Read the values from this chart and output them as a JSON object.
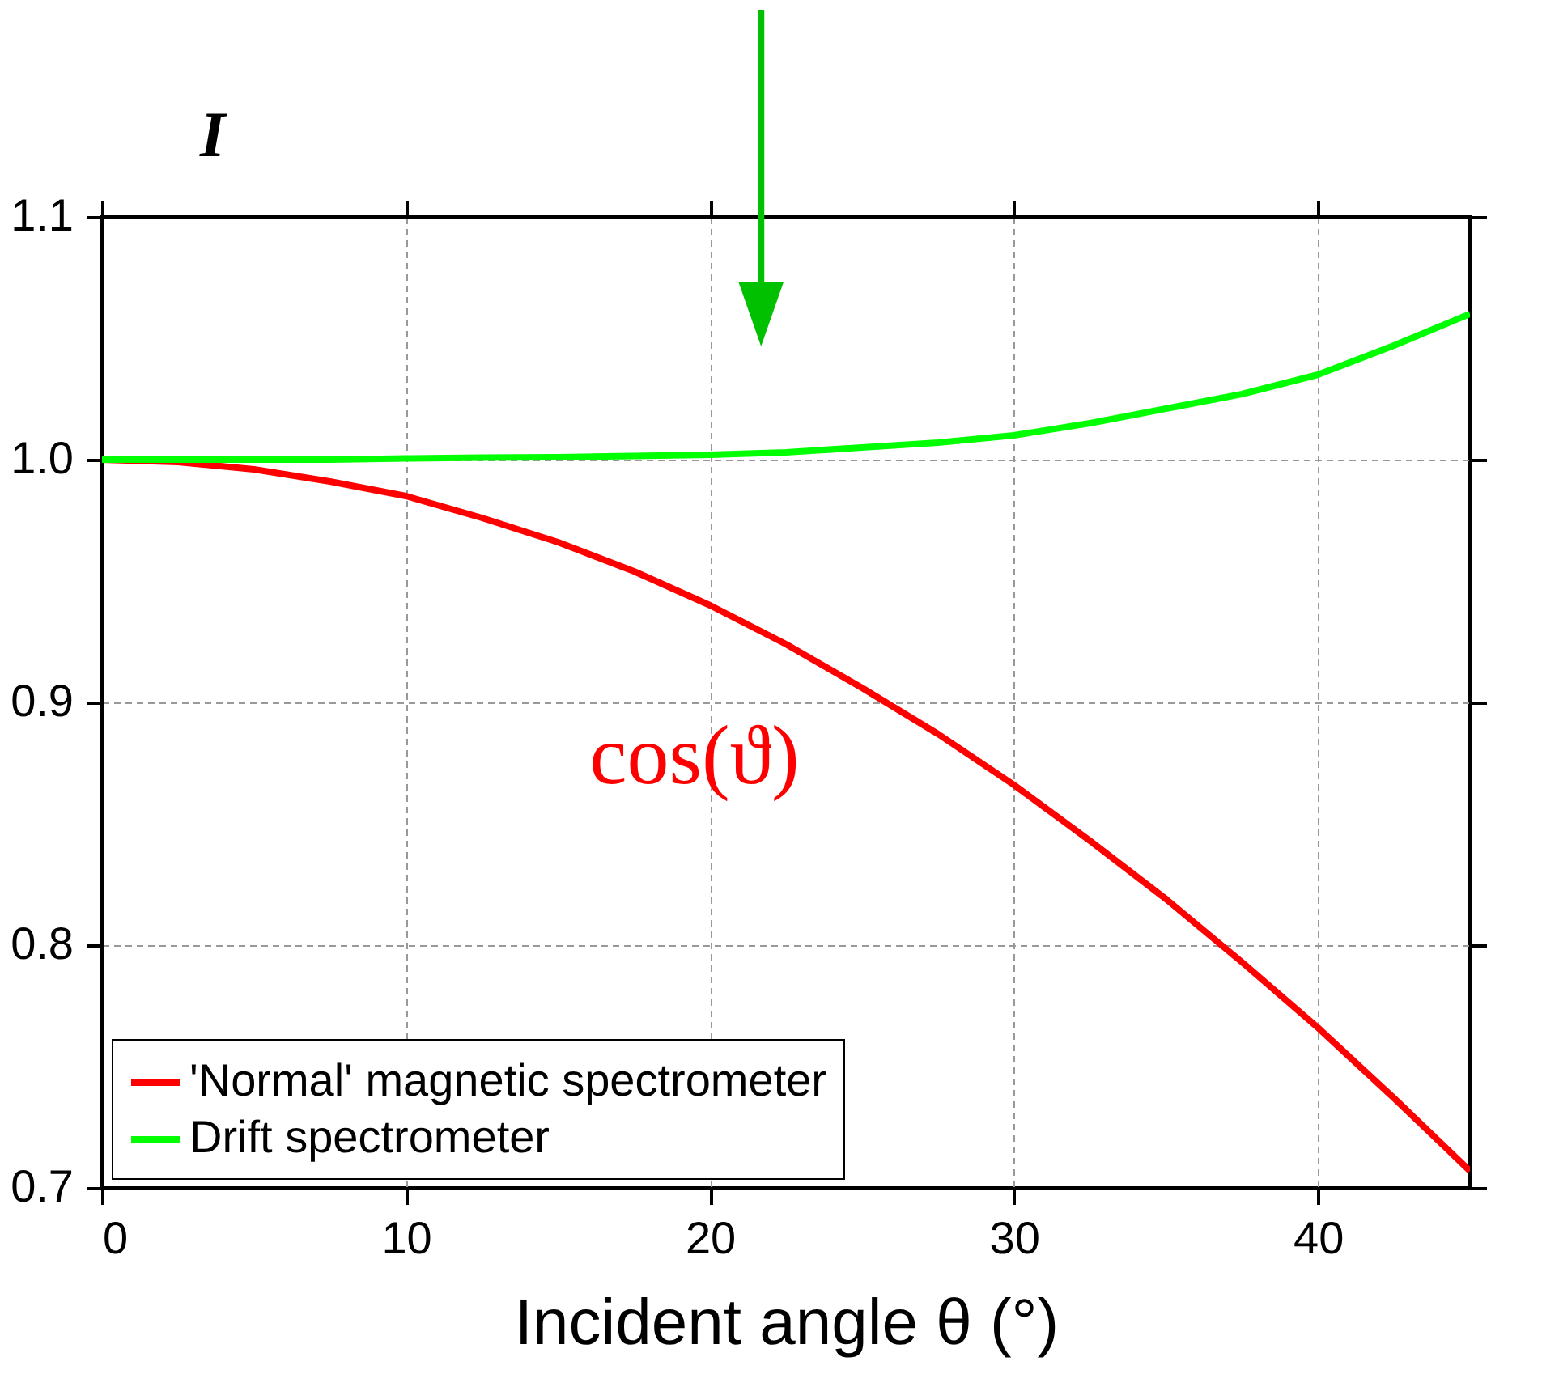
{
  "chart_data": {
    "type": "line",
    "xlabel": "Incident angle θ (°)",
    "ylabel": "I",
    "x": [
      0,
      2.5,
      5,
      7.5,
      10,
      12.5,
      15,
      17.5,
      20,
      22.5,
      25,
      27.5,
      30,
      32.5,
      35,
      37.5,
      40,
      42.5,
      45
    ],
    "series": [
      {
        "name": "'Normal' magnetic spectrometer",
        "color": "#ff0000",
        "values": [
          1,
          0.999,
          0.996,
          0.991,
          0.985,
          0.976,
          0.966,
          0.954,
          0.94,
          0.924,
          0.906,
          0.887,
          0.866,
          0.843,
          0.819,
          0.793,
          0.766,
          0.737,
          0.707
        ]
      },
      {
        "name": "Drift spectrometer",
        "color": "#00ff00",
        "values": [
          1,
          1,
          1,
          1,
          1.0005,
          1.0008,
          1.001,
          1.0015,
          1.002,
          1.003,
          1.005,
          1.007,
          1.01,
          1.015,
          1.021,
          1.027,
          1.035,
          1.047,
          1.06
        ]
      }
    ],
    "annotations": [
      "cos(ϑ)"
    ],
    "xlim": [
      0,
      45
    ],
    "xticks": [
      0,
      10,
      20,
      30,
      40
    ],
    "ylim": [
      0.7,
      1.1
    ],
    "yticks": [
      0.7,
      0.8,
      0.9,
      {
        "value": 1,
        "label": "1.0"
      },
      1.1
    ],
    "grid": true,
    "legend": "bottom left",
    "line_style": "solid",
    "marker": "none"
  }
}
